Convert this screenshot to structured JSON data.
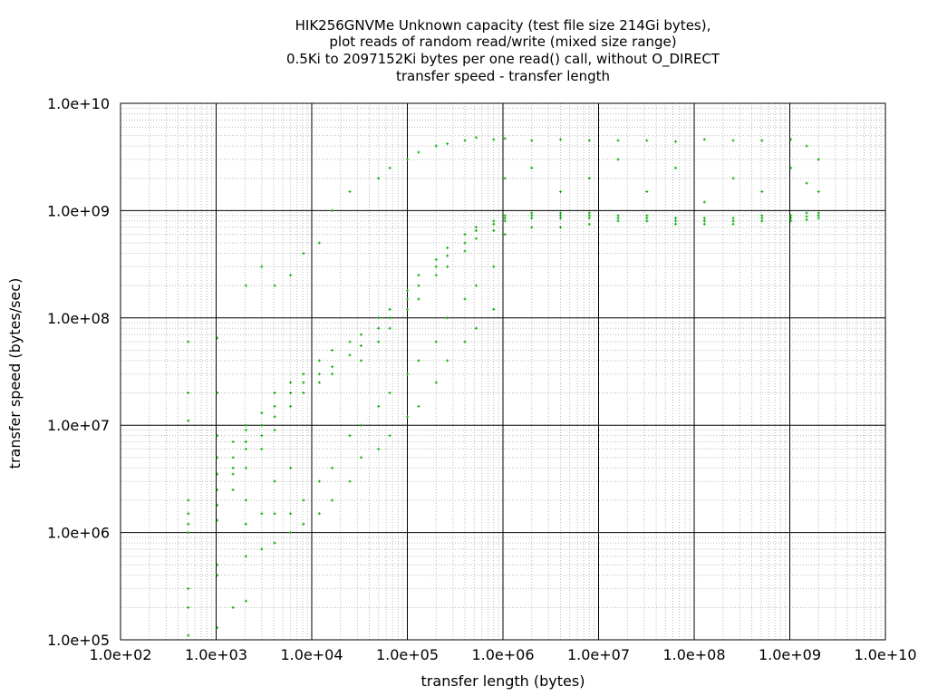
{
  "chart_data": {
    "type": "scatter",
    "title_lines": [
      "HIK256GNVMe Unknown capacity (test file size 214Gi bytes),",
      "plot reads of random read/write (mixed size range)",
      "0.5Ki to 2097152Ki bytes per one read() call, without O_DIRECT",
      "transfer speed - transfer length"
    ],
    "xlabel": "transfer length (bytes)",
    "ylabel": "transfer speed (bytes/sec)",
    "x_scale": "log",
    "y_scale": "log",
    "xlim": [
      100,
      10000000000
    ],
    "ylim": [
      100000,
      10000000000
    ],
    "x_ticks": [
      "1.0e+02",
      "1.0e+03",
      "1.0e+04",
      "1.0e+05",
      "1.0e+06",
      "1.0e+07",
      "1.0e+08",
      "1.0e+09",
      "1.0e+10"
    ],
    "y_ticks": [
      "1.0e+05",
      "1.0e+06",
      "1.0e+07",
      "1.0e+08",
      "1.0e+09",
      "1.0e+10"
    ],
    "grid": true,
    "series_color": "#00b000",
    "series": [
      {
        "points": [
          [
            512,
            60000000
          ],
          [
            512,
            20000000
          ],
          [
            512,
            11000000
          ],
          [
            512,
            2000000
          ],
          [
            512,
            1500000
          ],
          [
            512,
            1200000
          ],
          [
            512,
            1000000
          ],
          [
            512,
            300000
          ],
          [
            512,
            200000
          ],
          [
            512,
            110000
          ],
          [
            1024,
            65000000
          ],
          [
            1024,
            20000000
          ],
          [
            1024,
            8000000
          ],
          [
            1024,
            5000000
          ],
          [
            1024,
            3500000
          ],
          [
            1024,
            2500000
          ],
          [
            1024,
            1800000
          ],
          [
            1024,
            1300000
          ],
          [
            1024,
            500000
          ],
          [
            1024,
            400000
          ],
          [
            1024,
            130000
          ],
          [
            1500,
            7000000
          ],
          [
            1500,
            5000000
          ],
          [
            1500,
            4000000
          ],
          [
            1500,
            3500000
          ],
          [
            1500,
            2500000
          ],
          [
            1500,
            200000
          ],
          [
            2048,
            200000000
          ],
          [
            2048,
            10000000
          ],
          [
            2048,
            9000000
          ],
          [
            2048,
            7000000
          ],
          [
            2048,
            6000000
          ],
          [
            2048,
            4000000
          ],
          [
            2048,
            2000000
          ],
          [
            2048,
            1200000
          ],
          [
            2048,
            600000
          ],
          [
            2048,
            230000
          ],
          [
            3000,
            300000000
          ],
          [
            3000,
            13000000
          ],
          [
            3000,
            10000000
          ],
          [
            3000,
            8000000
          ],
          [
            3000,
            6000000
          ],
          [
            3000,
            1500000
          ],
          [
            3000,
            700000
          ],
          [
            4096,
            200000000
          ],
          [
            4096,
            20000000
          ],
          [
            4096,
            15000000
          ],
          [
            4096,
            12000000
          ],
          [
            4096,
            9000000
          ],
          [
            4096,
            3000000
          ],
          [
            4096,
            1500000
          ],
          [
            4096,
            800000
          ],
          [
            6000,
            250000000
          ],
          [
            6000,
            25000000
          ],
          [
            6000,
            20000000
          ],
          [
            6000,
            15000000
          ],
          [
            6000,
            4000000
          ],
          [
            6000,
            1500000
          ],
          [
            6000,
            1000000
          ],
          [
            8192,
            400000000
          ],
          [
            8192,
            30000000
          ],
          [
            8192,
            25000000
          ],
          [
            8192,
            20000000
          ],
          [
            8192,
            2000000
          ],
          [
            8192,
            1200000
          ],
          [
            12000,
            500000000
          ],
          [
            12000,
            40000000
          ],
          [
            12000,
            30000000
          ],
          [
            12000,
            25000000
          ],
          [
            12000,
            3000000
          ],
          [
            12000,
            1500000
          ],
          [
            16384,
            1000000000
          ],
          [
            16384,
            50000000
          ],
          [
            16384,
            35000000
          ],
          [
            16384,
            30000000
          ],
          [
            16384,
            4000000
          ],
          [
            16384,
            2000000
          ],
          [
            25000,
            1500000000
          ],
          [
            25000,
            60000000
          ],
          [
            25000,
            45000000
          ],
          [
            25000,
            8000000
          ],
          [
            25000,
            3000000
          ],
          [
            32768,
            70000000
          ],
          [
            32768,
            55000000
          ],
          [
            32768,
            40000000
          ],
          [
            32768,
            10000000
          ],
          [
            32768,
            5000000
          ],
          [
            50000,
            2000000000
          ],
          [
            50000,
            100000000
          ],
          [
            50000,
            80000000
          ],
          [
            50000,
            60000000
          ],
          [
            50000,
            15000000
          ],
          [
            50000,
            6000000
          ],
          [
            65536,
            2500000000
          ],
          [
            65536,
            120000000
          ],
          [
            65536,
            100000000
          ],
          [
            65536,
            80000000
          ],
          [
            65536,
            20000000
          ],
          [
            65536,
            8000000
          ],
          [
            100000,
            3000000000
          ],
          [
            100000,
            180000000
          ],
          [
            100000,
            150000000
          ],
          [
            100000,
            120000000
          ],
          [
            100000,
            30000000
          ],
          [
            100000,
            12000000
          ],
          [
            131072,
            3500000000
          ],
          [
            131072,
            250000000
          ],
          [
            131072,
            200000000
          ],
          [
            131072,
            150000000
          ],
          [
            131072,
            40000000
          ],
          [
            131072,
            15000000
          ],
          [
            200000,
            4000000000
          ],
          [
            200000,
            350000000
          ],
          [
            200000,
            300000000
          ],
          [
            200000,
            250000000
          ],
          [
            200000,
            60000000
          ],
          [
            200000,
            25000000
          ],
          [
            262144,
            4200000000
          ],
          [
            262144,
            450000000
          ],
          [
            262144,
            380000000
          ],
          [
            262144,
            300000000
          ],
          [
            262144,
            100000000
          ],
          [
            262144,
            40000000
          ],
          [
            400000,
            4500000000
          ],
          [
            400000,
            600000000
          ],
          [
            400000,
            500000000
          ],
          [
            400000,
            420000000
          ],
          [
            400000,
            150000000
          ],
          [
            400000,
            60000000
          ],
          [
            524288,
            4800000000
          ],
          [
            524288,
            700000000
          ],
          [
            524288,
            650000000
          ],
          [
            524288,
            550000000
          ],
          [
            524288,
            200000000
          ],
          [
            524288,
            80000000
          ],
          [
            800000,
            4600000000
          ],
          [
            800000,
            800000000
          ],
          [
            800000,
            750000000
          ],
          [
            800000,
            650000000
          ],
          [
            800000,
            300000000
          ],
          [
            800000,
            120000000
          ],
          [
            1048576,
            4700000000
          ],
          [
            1048576,
            900000000
          ],
          [
            1048576,
            850000000
          ],
          [
            1048576,
            800000000
          ],
          [
            1048576,
            600000000
          ],
          [
            1048576,
            2000000000
          ],
          [
            2000000,
            4500000000
          ],
          [
            2000000,
            950000000
          ],
          [
            2000000,
            900000000
          ],
          [
            2000000,
            850000000
          ],
          [
            2000000,
            700000000
          ],
          [
            2000000,
            2500000000
          ],
          [
            4000000,
            4600000000
          ],
          [
            4000000,
            950000000
          ],
          [
            4000000,
            900000000
          ],
          [
            4000000,
            850000000
          ],
          [
            4000000,
            700000000
          ],
          [
            4000000,
            1500000000
          ],
          [
            8000000,
            4500000000
          ],
          [
            8000000,
            950000000
          ],
          [
            8000000,
            900000000
          ],
          [
            8000000,
            850000000
          ],
          [
            8000000,
            750000000
          ],
          [
            8000000,
            2000000000
          ],
          [
            16000000,
            4500000000
          ],
          [
            16000000,
            900000000
          ],
          [
            16000000,
            850000000
          ],
          [
            16000000,
            800000000
          ],
          [
            16000000,
            3000000000
          ],
          [
            32000000,
            4500000000
          ],
          [
            32000000,
            900000000
          ],
          [
            32000000,
            850000000
          ],
          [
            32000000,
            800000000
          ],
          [
            32000000,
            1500000000
          ],
          [
            64000000,
            4400000000
          ],
          [
            64000000,
            850000000
          ],
          [
            64000000,
            800000000
          ],
          [
            64000000,
            750000000
          ],
          [
            64000000,
            2500000000
          ],
          [
            128000000,
            4600000000
          ],
          [
            128000000,
            850000000
          ],
          [
            128000000,
            800000000
          ],
          [
            128000000,
            750000000
          ],
          [
            128000000,
            1200000000
          ],
          [
            256000000,
            4500000000
          ],
          [
            256000000,
            850000000
          ],
          [
            256000000,
            800000000
          ],
          [
            256000000,
            750000000
          ],
          [
            256000000,
            2000000000
          ],
          [
            512000000,
            4500000000
          ],
          [
            512000000,
            900000000
          ],
          [
            512000000,
            850000000
          ],
          [
            512000000,
            800000000
          ],
          [
            512000000,
            1500000000
          ],
          [
            1024000000,
            4600000000
          ],
          [
            1024000000,
            900000000
          ],
          [
            1024000000,
            850000000
          ],
          [
            1024000000,
            800000000
          ],
          [
            1024000000,
            2500000000
          ],
          [
            1500000000,
            4000000000
          ],
          [
            1500000000,
            950000000
          ],
          [
            1500000000,
            880000000
          ],
          [
            1500000000,
            820000000
          ],
          [
            1500000000,
            1800000000
          ],
          [
            2000000000,
            3000000000
          ],
          [
            2000000000,
            950000000
          ],
          [
            2000000000,
            900000000
          ],
          [
            2000000000,
            850000000
          ],
          [
            2000000000,
            1500000000
          ]
        ]
      }
    ]
  }
}
